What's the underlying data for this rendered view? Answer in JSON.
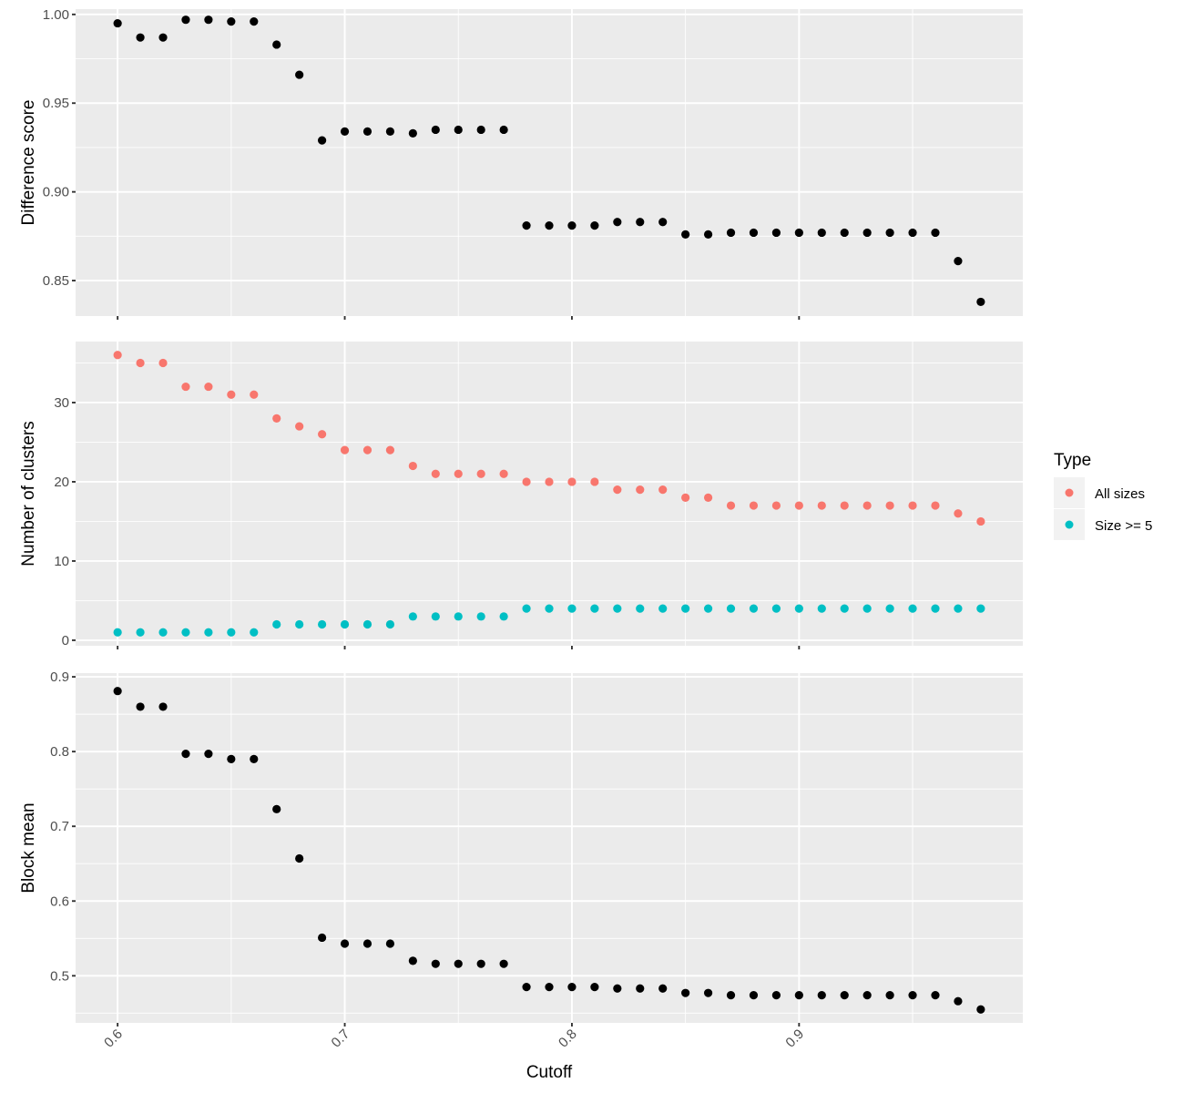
{
  "chart_data": [
    {
      "type": "scatter",
      "panel": "top",
      "ylabel": "Difference score",
      "ylim": [
        0.83,
        1.003
      ],
      "yticks": [
        0.85,
        0.9,
        0.95,
        1.0
      ],
      "ytick_labels": [
        "0.85",
        "0.90",
        "0.95",
        "1.00"
      ],
      "series": [
        {
          "color": "#000000",
          "x": [
            0.6,
            0.61,
            0.62,
            0.63,
            0.64,
            0.65,
            0.66,
            0.67,
            0.68,
            0.69,
            0.7,
            0.71,
            0.72,
            0.73,
            0.74,
            0.75,
            0.76,
            0.77,
            0.78,
            0.79,
            0.8,
            0.81,
            0.82,
            0.83,
            0.84,
            0.85,
            0.86,
            0.87,
            0.88,
            0.89,
            0.9,
            0.91,
            0.92,
            0.93,
            0.94,
            0.95,
            0.96,
            0.97,
            0.98
          ],
          "y": [
            0.995,
            0.987,
            0.987,
            0.997,
            0.997,
            0.996,
            0.996,
            0.983,
            0.966,
            0.929,
            0.934,
            0.934,
            0.934,
            0.933,
            0.935,
            0.935,
            0.935,
            0.935,
            0.881,
            0.881,
            0.881,
            0.881,
            0.883,
            0.883,
            0.883,
            0.876,
            0.876,
            0.877,
            0.877,
            0.877,
            0.877,
            0.877,
            0.877,
            0.877,
            0.877,
            0.877,
            0.877,
            0.861,
            0.838
          ]
        }
      ]
    },
    {
      "type": "scatter",
      "panel": "middle",
      "ylabel": "Number of clusters",
      "ylim": [
        -0.7,
        37.7
      ],
      "yticks": [
        0,
        10,
        20,
        30
      ],
      "ytick_labels": [
        "0",
        "10",
        "20",
        "30"
      ],
      "legend": {
        "title": "Type",
        "position": "right",
        "entries": [
          {
            "label": "All sizes",
            "color": "#F8766D"
          },
          {
            "label": "Size >= 5",
            "color": "#00BFC4"
          }
        ]
      },
      "series": [
        {
          "name": "All sizes",
          "color": "#F8766D",
          "x": [
            0.6,
            0.61,
            0.62,
            0.63,
            0.64,
            0.65,
            0.66,
            0.67,
            0.68,
            0.69,
            0.7,
            0.71,
            0.72,
            0.73,
            0.74,
            0.75,
            0.76,
            0.77,
            0.78,
            0.79,
            0.8,
            0.81,
            0.82,
            0.83,
            0.84,
            0.85,
            0.86,
            0.87,
            0.88,
            0.89,
            0.9,
            0.91,
            0.92,
            0.93,
            0.94,
            0.95,
            0.96,
            0.97,
            0.98
          ],
          "y": [
            36,
            35,
            35,
            32,
            32,
            31,
            31,
            28,
            27,
            26,
            24,
            24,
            24,
            22,
            21,
            21,
            21,
            21,
            20,
            20,
            20,
            20,
            19,
            19,
            19,
            18,
            18,
            17,
            17,
            17,
            17,
            17,
            17,
            17,
            17,
            17,
            17,
            16,
            15
          ]
        },
        {
          "name": "Size >= 5",
          "color": "#00BFC4",
          "x": [
            0.6,
            0.61,
            0.62,
            0.63,
            0.64,
            0.65,
            0.66,
            0.67,
            0.68,
            0.69,
            0.7,
            0.71,
            0.72,
            0.73,
            0.74,
            0.75,
            0.76,
            0.77,
            0.78,
            0.79,
            0.8,
            0.81,
            0.82,
            0.83,
            0.84,
            0.85,
            0.86,
            0.87,
            0.88,
            0.89,
            0.9,
            0.91,
            0.92,
            0.93,
            0.94,
            0.95,
            0.96,
            0.97,
            0.98
          ],
          "y": [
            1,
            1,
            1,
            1,
            1,
            1,
            1,
            2,
            2,
            2,
            2,
            2,
            2,
            3,
            3,
            3,
            3,
            3,
            4,
            4,
            4,
            4,
            4,
            4,
            4,
            4,
            4,
            4,
            4,
            4,
            4,
            4,
            4,
            4,
            4,
            4,
            4,
            4,
            4
          ]
        }
      ]
    },
    {
      "type": "scatter",
      "panel": "bottom",
      "ylabel": "Block mean",
      "xlabel": "Cutoff",
      "ylim": [
        0.437,
        0.905
      ],
      "yticks": [
        0.5,
        0.6,
        0.7,
        0.8,
        0.9
      ],
      "ytick_labels": [
        "0.5",
        "0.6",
        "0.7",
        "0.8",
        "0.9"
      ],
      "series": [
        {
          "color": "#000000",
          "x": [
            0.6,
            0.61,
            0.62,
            0.63,
            0.64,
            0.65,
            0.66,
            0.67,
            0.68,
            0.69,
            0.7,
            0.71,
            0.72,
            0.73,
            0.74,
            0.75,
            0.76,
            0.77,
            0.78,
            0.79,
            0.8,
            0.81,
            0.82,
            0.83,
            0.84,
            0.85,
            0.86,
            0.87,
            0.88,
            0.89,
            0.9,
            0.91,
            0.92,
            0.93,
            0.94,
            0.95,
            0.96,
            0.97,
            0.98
          ],
          "y": [
            0.881,
            0.86,
            0.86,
            0.797,
            0.797,
            0.79,
            0.79,
            0.723,
            0.657,
            0.551,
            0.543,
            0.543,
            0.543,
            0.52,
            0.516,
            0.516,
            0.516,
            0.516,
            0.485,
            0.485,
            0.485,
            0.485,
            0.483,
            0.483,
            0.483,
            0.477,
            0.477,
            0.474,
            0.474,
            0.474,
            0.474,
            0.474,
            0.474,
            0.474,
            0.474,
            0.474,
            0.474,
            0.466,
            0.455
          ]
        }
      ]
    }
  ],
  "x_axis": {
    "label": "Cutoff",
    "xlim": [
      0.5815,
      0.9985
    ],
    "ticks": [
      0.6,
      0.7,
      0.8,
      0.9
    ],
    "tick_labels": [
      "0.6",
      "0.7",
      "0.8",
      "0.9"
    ],
    "shared": true
  },
  "grid": true,
  "background_color": "#EBEBEB"
}
